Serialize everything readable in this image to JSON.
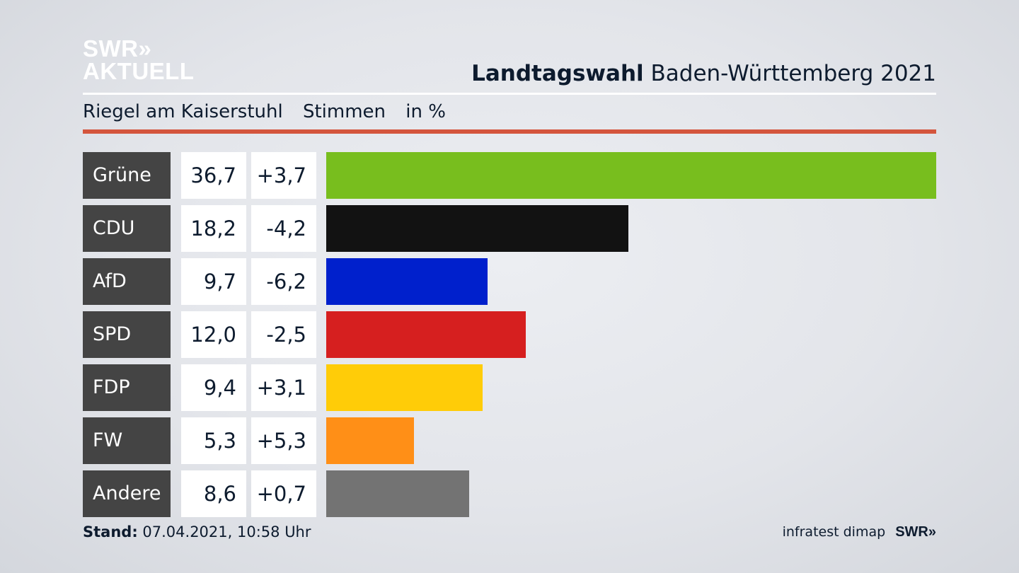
{
  "logo": {
    "line1": "SWR»",
    "line2": "AKTUELL"
  },
  "title": {
    "bold": "Landtagswahl",
    "rest": "Baden-Württemberg 2021"
  },
  "subtitle": {
    "place": "Riegel am Kaiserstuhl",
    "measure": "Stimmen",
    "unit": "in %"
  },
  "footer": {
    "stand_label": "Stand:",
    "stand_value": "07.04.2021, 10:58 Uhr",
    "source": "infratest dimap",
    "brand": "SWR»"
  },
  "chart_data": {
    "type": "bar",
    "categories": [
      "Grüne",
      "CDU",
      "AfD",
      "SPD",
      "FDP",
      "FW",
      "Andere"
    ],
    "values": [
      36.7,
      18.2,
      9.7,
      12.0,
      9.4,
      5.3,
      8.6
    ],
    "value_labels": [
      "36,7",
      "18,2",
      "9,7",
      "12,0",
      "9,4",
      "5,3",
      "8,6"
    ],
    "diff_labels": [
      "+3,7",
      "-4,2",
      "-6,2",
      "-2,5",
      "+3,1",
      "+5,3",
      "+0,7"
    ],
    "colors": [
      "#78be1e",
      "#121212",
      "#0020cc",
      "#d61f1f",
      "#ffcc08",
      "#ff8f17",
      "#737373"
    ],
    "xlim": [
      0,
      36.7
    ]
  }
}
